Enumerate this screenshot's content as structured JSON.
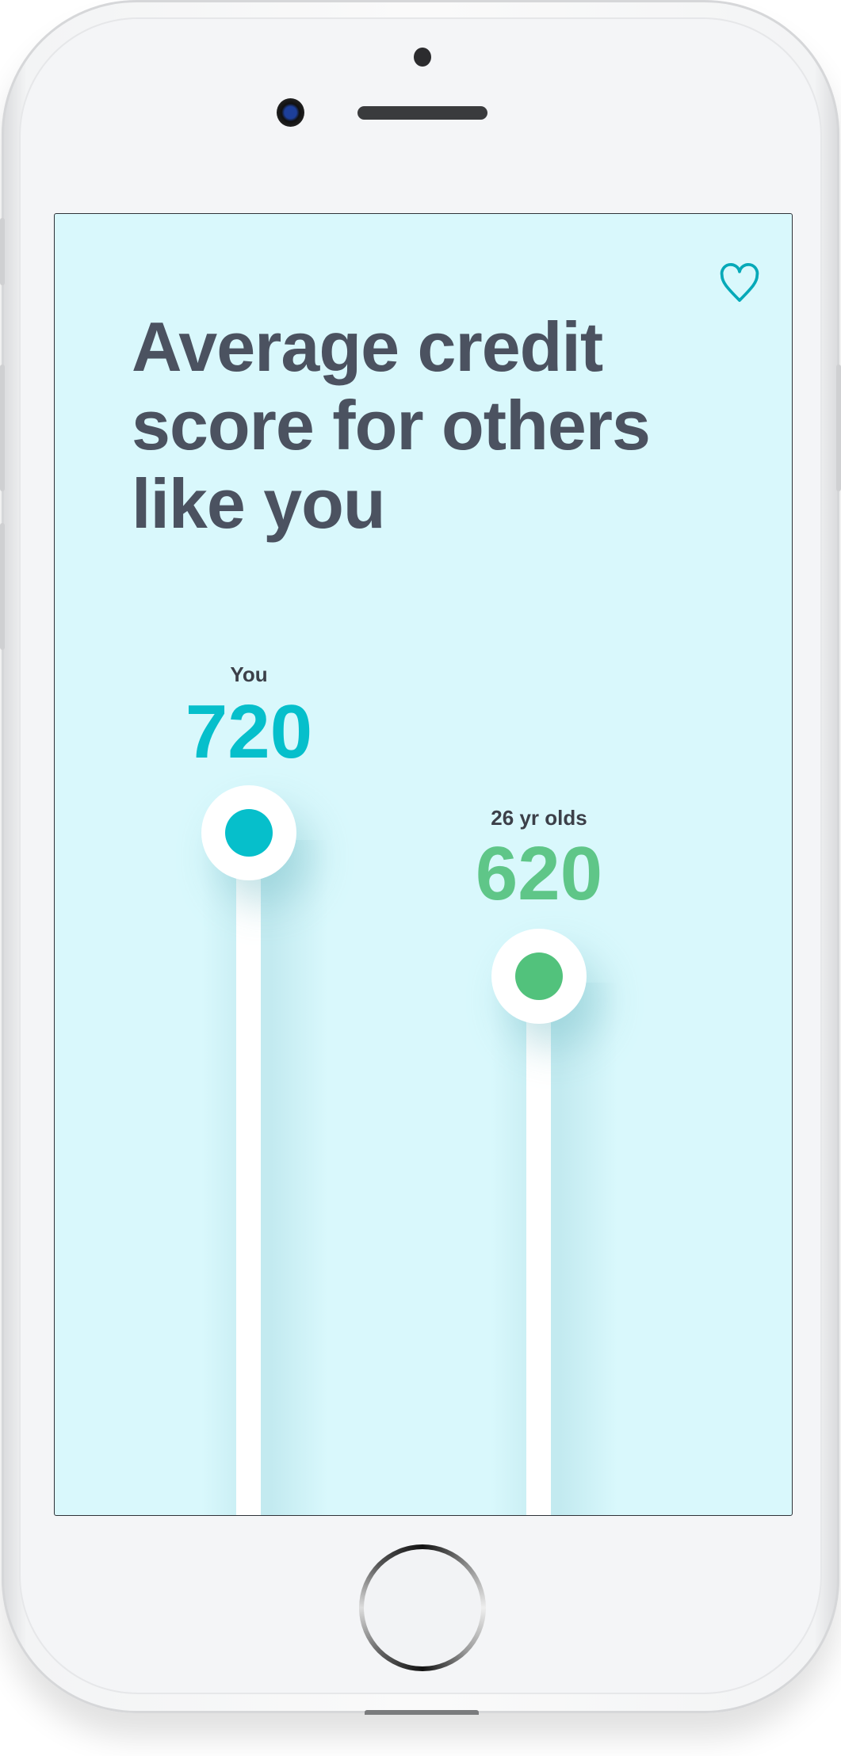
{
  "app": {
    "title": "Average credit score for others like you",
    "favorite_icon": "heart-outline-icon",
    "accent_color": "#06bfcb",
    "comparison_color": "#5fc688",
    "background_color": "#d9f8fc"
  },
  "scores": [
    {
      "label": "You",
      "value": "720",
      "color": "#06bfcb"
    },
    {
      "label": "26 yr olds",
      "value": "620",
      "color": "#5fc688"
    }
  ]
}
